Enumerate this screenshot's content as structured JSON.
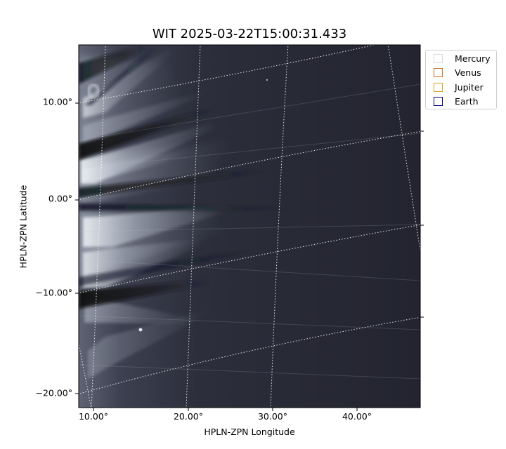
{
  "title": "WIT 2025-03-22T15:00:31.433",
  "xlabel": "HPLN-ZPN Longitude",
  "ylabel": "HPLN-ZPN Latitude",
  "y_ticks": [
    "10.00°",
    "0.00°",
    "−10.00°",
    "−20.00°"
  ],
  "x_ticks": [
    "10.00°",
    "20.00°",
    "30.00°",
    "40.00°"
  ],
  "legend": [
    {
      "name": "Mercury",
      "color": "#d9d9d9"
    },
    {
      "name": "Venus",
      "color": "#d2691e"
    },
    {
      "name": "Jupiter",
      "color": "#daa520"
    },
    {
      "name": "Earth",
      "color": "#000080"
    }
  ],
  "image": {
    "colormap": "bone"
  }
}
